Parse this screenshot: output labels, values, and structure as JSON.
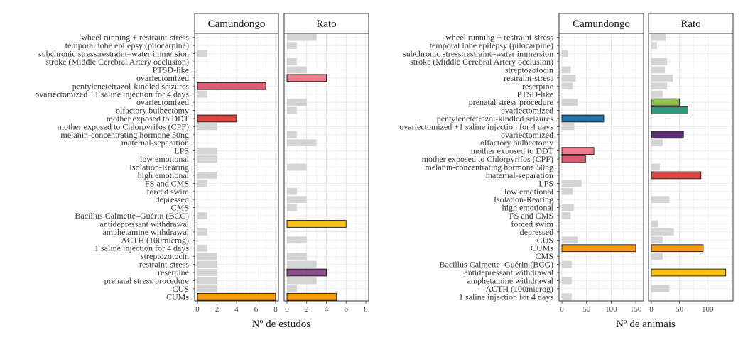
{
  "chart_data": [
    {
      "type": "bar",
      "orientation": "horizontal",
      "facets": [
        "Camundongo",
        "Rato"
      ],
      "xlabel": "Nº de estudos",
      "xlim": [
        0,
        8
      ],
      "xticks": [
        0,
        2,
        4,
        6,
        8
      ],
      "grid": true,
      "legend": "none",
      "categories": [
        "wheel running + restraint-stress",
        "temporal lobe epilepsy (pilocarpine)",
        "subchronic stress:restraint–water immersion",
        "stroke (Middle Cerebral Artery occlusion)",
        "PTSD-like",
        "ovariectomized",
        "pentylenetetrazol-kindled seizures",
        "ovariectomized +1 saline injection for 4 days",
        "ovariectomized",
        "olfactory bulbectomy",
        "mother exposed to DDT",
        "mother exposed to Chlorpyrifos (CPF)",
        "melanin-concentrating hormone 50ng",
        "maternal-separation",
        "LPS",
        "low emotional",
        "Isolation-Rearing",
        "high emotional",
        "FS and CMS",
        "forced swim",
        "depressed",
        "CMS",
        "Bacillus Calmette–Guérin (BCG)",
        "antidepressant withdrawal",
        "amphetamine withdrawal",
        "ACTH (100microg)",
        "1 saline injection for 4 days",
        "streptozotocin",
        "restraint-stress",
        "reserpine",
        "prenatal stress procedure",
        "CUS",
        "CUMs"
      ],
      "series": [
        {
          "name": "Camundongo",
          "values": [
            0,
            0,
            1,
            0,
            0,
            0,
            7,
            1,
            0,
            0,
            4,
            2,
            0,
            0,
            2,
            2,
            0,
            2,
            1,
            0,
            0,
            0,
            1,
            0,
            1,
            0,
            1,
            2,
            2,
            2,
            2,
            2,
            8
          ],
          "colors": [
            "#d4d4d4",
            "#d4d4d4",
            "#d4d4d4",
            "#d4d4d4",
            "#d4d4d4",
            "#d4d4d4",
            "#e05c75",
            "#d4d4d4",
            "#d4d4d4",
            "#d4d4d4",
            "#d94840",
            "#d4d4d4",
            "#d4d4d4",
            "#d4d4d4",
            "#d4d4d4",
            "#d4d4d4",
            "#d4d4d4",
            "#d4d4d4",
            "#d4d4d4",
            "#d4d4d4",
            "#d4d4d4",
            "#d4d4d4",
            "#d4d4d4",
            "#d4d4d4",
            "#d4d4d4",
            "#d4d4d4",
            "#d4d4d4",
            "#d4d4d4",
            "#d4d4d4",
            "#d4d4d4",
            "#d4d4d4",
            "#d4d4d4",
            "#f79a0e"
          ]
        },
        {
          "name": "Rato",
          "values": [
            3,
            1,
            0,
            1,
            2,
            4,
            0,
            0,
            2,
            1,
            0,
            0,
            1,
            3,
            0,
            0,
            2,
            0,
            0,
            1,
            2,
            1,
            0,
            6,
            0,
            2,
            0,
            2,
            3,
            4,
            3,
            1,
            5
          ],
          "colors": [
            "#d4d4d4",
            "#d4d4d4",
            "#d4d4d4",
            "#d4d4d4",
            "#d4d4d4",
            "#ec7b8d",
            "#d4d4d4",
            "#d4d4d4",
            "#d4d4d4",
            "#d4d4d4",
            "#d4d4d4",
            "#d4d4d4",
            "#d4d4d4",
            "#d4d4d4",
            "#d4d4d4",
            "#d4d4d4",
            "#d4d4d4",
            "#d4d4d4",
            "#d4d4d4",
            "#d4d4d4",
            "#d4d4d4",
            "#d4d4d4",
            "#d4d4d4",
            "#f8c117",
            "#d4d4d4",
            "#d4d4d4",
            "#d4d4d4",
            "#d4d4d4",
            "#d4d4d4",
            "#8b4e88",
            "#d4d4d4",
            "#d4d4d4",
            "#f79a0e"
          ]
        }
      ]
    },
    {
      "type": "bar",
      "orientation": "horizontal",
      "facets": [
        "Camundongo",
        "Rato"
      ],
      "xlabel": "Nº de animais",
      "xlim_facets": [
        [
          0,
          160
        ],
        [
          0,
          140
        ]
      ],
      "xticks_facets": [
        [
          0,
          50,
          100,
          150
        ],
        [
          0,
          50,
          100
        ]
      ],
      "grid": true,
      "legend": "none",
      "categories": [
        "wheel running + restraint-stress",
        "temporal lobe epilepsy (pilocarpine)",
        "subchronic stress:restraint–water immersion",
        "stroke (Middle Cerebral Artery occlusion)",
        "streptozotocin",
        "restraint-stress",
        "reserpine",
        "PTSD-like",
        "prenatal stress procedure",
        "ovariectomized",
        "pentylenetetrazol-kindled seizures",
        "ovariectomized +1 saline injection for 4 days",
        "ovariectomized",
        "olfactory bulbectomy",
        "mother exposed to DDT",
        "mother exposed to Chlorpyrifos (CPF)",
        "melanin-concentrating hormone 50ng",
        "maternal-separation",
        "LPS",
        "low emotional",
        "Isolation-Rearing",
        "high emotional",
        "FS and CMS",
        "forced swim",
        "depressed",
        "CUS",
        "CUMs",
        "CMS",
        "Bacillus Calmette–Guérin (BCG)",
        "antidepressant withdrawal",
        "amphetamine withdrawal",
        "ACTH (100microg)",
        "1 saline injection for 4 days"
      ],
      "series": [
        {
          "name": "Camundongo",
          "values": [
            0,
            0,
            12,
            0,
            18,
            28,
            22,
            0,
            32,
            0,
            85,
            25,
            0,
            0,
            65,
            48,
            0,
            0,
            40,
            22,
            0,
            24,
            18,
            0,
            0,
            32,
            150,
            0,
            20,
            0,
            20,
            0,
            20
          ],
          "colors": [
            "#d4d4d4",
            "#d4d4d4",
            "#d4d4d4",
            "#d4d4d4",
            "#d4d4d4",
            "#d4d4d4",
            "#d4d4d4",
            "#d4d4d4",
            "#d4d4d4",
            "#d4d4d4",
            "#2471a3",
            "#d4d4d4",
            "#d4d4d4",
            "#d4d4d4",
            "#ec7b8d",
            "#e05c75",
            "#d4d4d4",
            "#d4d4d4",
            "#d4d4d4",
            "#d4d4d4",
            "#d4d4d4",
            "#d4d4d4",
            "#d4d4d4",
            "#d4d4d4",
            "#d4d4d4",
            "#d4d4d4",
            "#f79a0e",
            "#d4d4d4",
            "#d4d4d4",
            "#d4d4d4",
            "#d4d4d4",
            "#d4d4d4",
            "#d4d4d4"
          ]
        },
        {
          "name": "Rato",
          "values": [
            25,
            10,
            0,
            28,
            24,
            38,
            28,
            20,
            50,
            65,
            0,
            0,
            57,
            20,
            0,
            0,
            15,
            88,
            0,
            0,
            32,
            0,
            0,
            12,
            40,
            20,
            92,
            20,
            0,
            132,
            0,
            32,
            0
          ],
          "colors": [
            "#d4d4d4",
            "#d4d4d4",
            "#d4d4d4",
            "#d4d4d4",
            "#d4d4d4",
            "#d4d4d4",
            "#d4d4d4",
            "#d4d4d4",
            "#8dc04f",
            "#2e9c7c",
            "#d4d4d4",
            "#d4d4d4",
            "#5a2f70",
            "#d4d4d4",
            "#d4d4d4",
            "#d4d4d4",
            "#d4d4d4",
            "#d94840",
            "#d4d4d4",
            "#d4d4d4",
            "#d4d4d4",
            "#d4d4d4",
            "#d4d4d4",
            "#d4d4d4",
            "#d4d4d4",
            "#d4d4d4",
            "#f79a0e",
            "#d4d4d4",
            "#d4d4d4",
            "#f8c117",
            "#d4d4d4",
            "#d4d4d4",
            "#d4d4d4"
          ]
        }
      ]
    }
  ]
}
